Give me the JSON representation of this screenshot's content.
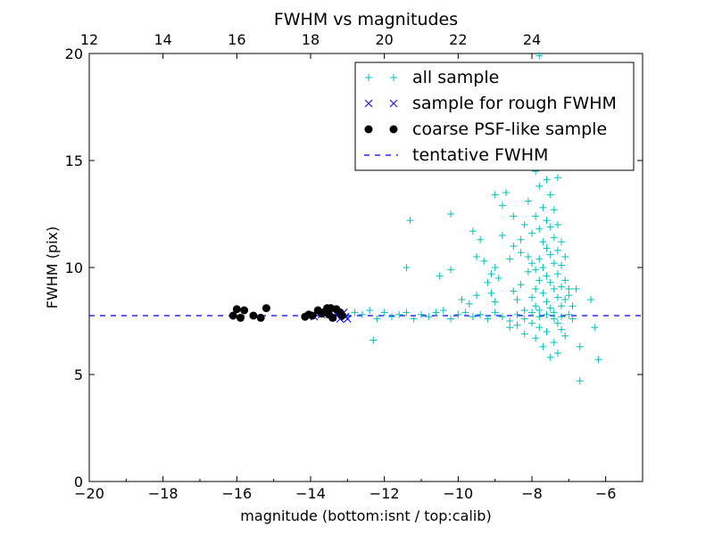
{
  "chart_data": {
    "type": "scatter",
    "title": "FWHM vs magnitudes",
    "xlabel": "magnitude (bottom:isnt / top:calib)",
    "ylabel": "FWHM (pix)",
    "xlim": [
      -20,
      -5
    ],
    "ylim": [
      0,
      20
    ],
    "x_ticks": [
      "−20",
      "−18",
      "−16",
      "−14",
      "−12",
      "−10",
      "−8",
      "−6"
    ],
    "y_ticks": [
      "0",
      "5",
      "10",
      "15",
      "20"
    ],
    "top_axis": {
      "offset": 32,
      "ticks": [
        "12",
        "14",
        "16",
        "18",
        "20",
        "22",
        "24"
      ]
    },
    "legend": {
      "placement": "top-right",
      "entries": [
        "all sample",
        "sample for rough FWHM",
        "coarse PSF-like sample",
        "tentative FWHM"
      ]
    },
    "grid": false,
    "colors": {
      "all_sample": "#00BFBF",
      "rough_sample": "#0000FF",
      "psf_sample": "#000000",
      "tentative_line": "#0000FF"
    },
    "tentative_fwhm": 7.75,
    "series": [
      {
        "name": "all sample",
        "marker": "plus",
        "points": [
          [
            -13.0,
            7.7
          ],
          [
            -12.8,
            7.9
          ],
          [
            -12.6,
            7.8
          ],
          [
            -12.4,
            8.0
          ],
          [
            -12.2,
            7.6
          ],
          [
            -12.0,
            7.9
          ],
          [
            -11.8,
            7.7
          ],
          [
            -11.6,
            7.8
          ],
          [
            -11.4,
            7.9
          ],
          [
            -11.2,
            7.6
          ],
          [
            -11.0,
            7.8
          ],
          [
            -10.8,
            7.7
          ],
          [
            -10.6,
            7.9
          ],
          [
            -10.4,
            8.0
          ],
          [
            -10.2,
            7.6
          ],
          [
            -10.0,
            7.8
          ],
          [
            -9.8,
            7.9
          ],
          [
            -9.6,
            7.7
          ],
          [
            -9.4,
            7.8
          ],
          [
            -9.2,
            7.6
          ],
          [
            -9.0,
            7.9
          ],
          [
            -8.8,
            7.7
          ],
          [
            -8.6,
            7.5
          ],
          [
            -8.4,
            7.8
          ],
          [
            -8.2,
            7.6
          ],
          [
            -8.0,
            7.9
          ],
          [
            -7.8,
            7.7
          ],
          [
            -7.6,
            7.8
          ],
          [
            -7.4,
            7.6
          ],
          [
            -7.2,
            7.7
          ],
          [
            -7.0,
            7.8
          ],
          [
            -6.9,
            7.6
          ],
          [
            -12.3,
            6.6
          ],
          [
            -11.3,
            12.2
          ],
          [
            -11.4,
            10.0
          ],
          [
            -10.2,
            12.5
          ],
          [
            -10.2,
            9.9
          ],
          [
            -9.9,
            8.5
          ],
          [
            -9.7,
            8.3
          ],
          [
            -9.5,
            8.7
          ],
          [
            -9.5,
            10.5
          ],
          [
            -9.4,
            11.3
          ],
          [
            -9.3,
            10.3
          ],
          [
            -9.2,
            9.3
          ],
          [
            -9.1,
            8.8
          ],
          [
            -9.1,
            9.7
          ],
          [
            -9.0,
            10.0
          ],
          [
            -9.0,
            8.4
          ],
          [
            -8.9,
            9.5
          ],
          [
            -8.8,
            12.9
          ],
          [
            -8.7,
            13.5
          ],
          [
            -8.6,
            10.4
          ],
          [
            -8.6,
            7.2
          ],
          [
            -8.5,
            12.4
          ],
          [
            -8.5,
            11.0
          ],
          [
            -8.5,
            8.9
          ],
          [
            -8.4,
            8.5
          ],
          [
            -8.4,
            7.3
          ],
          [
            -8.3,
            11.3
          ],
          [
            -8.3,
            10.7
          ],
          [
            -8.3,
            9.2
          ],
          [
            -8.2,
            12.0
          ],
          [
            -8.2,
            8.0
          ],
          [
            -8.2,
            6.9
          ],
          [
            -8.1,
            13.1
          ],
          [
            -8.1,
            10.5
          ],
          [
            -8.1,
            9.8
          ],
          [
            -8.0,
            11.6
          ],
          [
            -8.0,
            10.2
          ],
          [
            -8.0,
            8.6
          ],
          [
            -8.0,
            7.4
          ],
          [
            -7.9,
            14.5
          ],
          [
            -7.9,
            12.4
          ],
          [
            -7.9,
            9.9
          ],
          [
            -7.9,
            9.0
          ],
          [
            -7.9,
            8.2
          ],
          [
            -7.9,
            6.7
          ],
          [
            -7.8,
            13.8
          ],
          [
            -7.8,
            11.8
          ],
          [
            -7.8,
            10.4
          ],
          [
            -7.8,
            9.4
          ],
          [
            -7.8,
            8.0
          ],
          [
            -7.8,
            7.2
          ],
          [
            -7.7,
            15.2
          ],
          [
            -7.7,
            12.8
          ],
          [
            -7.7,
            11.2
          ],
          [
            -7.7,
            10.0
          ],
          [
            -7.7,
            8.8
          ],
          [
            -7.7,
            6.3
          ],
          [
            -7.6,
            14.1
          ],
          [
            -7.6,
            12.2
          ],
          [
            -7.6,
            10.9
          ],
          [
            -7.6,
            9.6
          ],
          [
            -7.6,
            8.4
          ],
          [
            -7.6,
            7.0
          ],
          [
            -7.5,
            13.4
          ],
          [
            -7.5,
            11.9
          ],
          [
            -7.5,
            10.6
          ],
          [
            -7.5,
            9.3
          ],
          [
            -7.5,
            8.1
          ],
          [
            -7.5,
            5.8
          ],
          [
            -7.4,
            12.7
          ],
          [
            -7.4,
            11.4
          ],
          [
            -7.4,
            10.2
          ],
          [
            -7.4,
            9.0
          ],
          [
            -7.4,
            7.9
          ],
          [
            -7.4,
            6.5
          ],
          [
            -7.3,
            12.0
          ],
          [
            -7.3,
            10.8
          ],
          [
            -7.3,
            9.7
          ],
          [
            -7.3,
            8.6
          ],
          [
            -7.3,
            7.4
          ],
          [
            -7.3,
            6.0
          ],
          [
            -7.2,
            11.2
          ],
          [
            -7.2,
            10.1
          ],
          [
            -7.2,
            9.1
          ],
          [
            -7.2,
            8.2
          ],
          [
            -7.2,
            7.1
          ],
          [
            -7.1,
            10.5
          ],
          [
            -7.1,
            9.4
          ],
          [
            -7.1,
            8.5
          ],
          [
            -7.1,
            6.8
          ],
          [
            -7.0,
            9.0
          ],
          [
            -7.0,
            8.7
          ],
          [
            -6.9,
            8.2
          ],
          [
            -6.8,
            9.0
          ],
          [
            -6.7,
            6.3
          ],
          [
            -6.7,
            4.7
          ],
          [
            -6.4,
            8.5
          ],
          [
            -6.3,
            7.2
          ],
          [
            -6.2,
            5.7
          ],
          [
            -7.8,
            19.9
          ],
          [
            -7.9,
            18.3
          ],
          [
            -7.7,
            17.5
          ],
          [
            -7.5,
            16.2
          ],
          [
            -7.6,
            15.8
          ],
          [
            -7.4,
            15.0
          ],
          [
            -7.3,
            14.2
          ],
          [
            -8.6,
            15.9
          ],
          [
            -8.2,
            16.6
          ],
          [
            -9.0,
            13.4
          ],
          [
            -8.8,
            11.5
          ],
          [
            -9.6,
            11.7
          ],
          [
            -10.5,
            9.6
          ]
        ]
      },
      {
        "name": "sample for rough FWHM",
        "marker": "x",
        "points": [
          [
            -13.9,
            7.7
          ],
          [
            -13.7,
            7.8
          ],
          [
            -13.5,
            7.9
          ],
          [
            -13.4,
            7.7
          ],
          [
            -13.3,
            7.8
          ],
          [
            -13.2,
            7.6
          ],
          [
            -13.1,
            7.9
          ],
          [
            -13.05,
            7.7
          ],
          [
            -13.0,
            7.6
          ],
          [
            -13.15,
            7.8
          ]
        ]
      },
      {
        "name": "coarse PSF-like sample",
        "marker": "dot",
        "points": [
          [
            -16.1,
            7.75
          ],
          [
            -16.0,
            8.05
          ],
          [
            -15.9,
            7.65
          ],
          [
            -15.8,
            8.0
          ],
          [
            -15.55,
            7.75
          ],
          [
            -15.35,
            7.65
          ],
          [
            -15.2,
            8.1
          ],
          [
            -14.15,
            7.7
          ],
          [
            -13.95,
            7.75
          ],
          [
            -13.8,
            8.0
          ],
          [
            -13.7,
            7.85
          ],
          [
            -13.6,
            7.95
          ],
          [
            -13.5,
            7.8
          ],
          [
            -13.45,
            8.1
          ],
          [
            -13.4,
            7.65
          ],
          [
            -13.3,
            8.05
          ],
          [
            -13.2,
            7.9
          ],
          [
            -13.15,
            7.75
          ],
          [
            -14.05,
            7.8
          ],
          [
            -13.55,
            8.1
          ]
        ]
      }
    ]
  }
}
